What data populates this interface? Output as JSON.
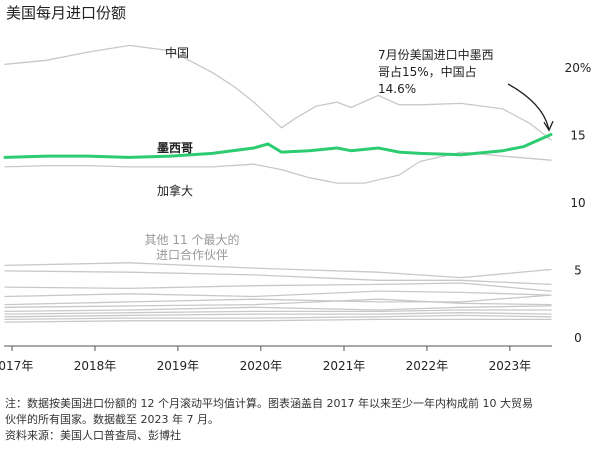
{
  "title": "美国每月进口份额",
  "note_lines": [
    "注：数据按美国进口份额的 12 个月滚动平均值计算。图表涵盖自 2017 年以来至少一年内构成前 10 大贸易",
    "伙伴的所有国家。数据截至 2023 年 7 月。"
  ],
  "source": "资料来源：美国人口普查局、彭博社",
  "colors": {
    "mexico": "#2ecc71",
    "others": "#c8c8c8",
    "axis": "#555555",
    "text": "#222222"
  },
  "chart_data": {
    "type": "line",
    "x_ticks": [
      "2017年",
      "2018年",
      "2019年",
      "2020年",
      "2021年",
      "2022年",
      "2023年"
    ],
    "x_range": [
      "2016-12",
      "2023-07"
    ],
    "ylim": [
      0,
      22
    ],
    "y_ticks": [
      "20%",
      "15",
      "10",
      "5",
      "0"
    ],
    "grid": false,
    "annotation": {
      "lines": [
        "7月份美国进口中墨西",
        "哥占15%，中国占",
        "14.6%"
      ],
      "target": {
        "x": "2023-07",
        "y": 14.8
      }
    },
    "group_label": [
      "其他 11 个最大的",
      "进口合作伙伴"
    ],
    "series": [
      {
        "name": "中国",
        "emphasis": false,
        "x": [
          "2016-12",
          "2017-06",
          "2017-12",
          "2018-06",
          "2018-12",
          "2019-06",
          "2019-09",
          "2019-12",
          "2020-04",
          "2020-06",
          "2020-09",
          "2020-12",
          "2021-02",
          "2021-06",
          "2021-09",
          "2021-12",
          "2022-06",
          "2022-12",
          "2023-04",
          "2023-07"
        ],
        "values": [
          20.2,
          20.5,
          21.1,
          21.6,
          21.2,
          19.6,
          18.6,
          17.4,
          15.5,
          16.2,
          17.1,
          17.4,
          17.0,
          17.9,
          17.2,
          17.2,
          17.3,
          16.9,
          15.8,
          14.6
        ]
      },
      {
        "name": "墨西哥",
        "emphasis": true,
        "x": [
          "2016-12",
          "2017-06",
          "2017-12",
          "2018-06",
          "2018-12",
          "2019-06",
          "2019-12",
          "2020-02",
          "2020-04",
          "2020-08",
          "2020-12",
          "2021-02",
          "2021-06",
          "2021-09",
          "2021-12",
          "2022-06",
          "2022-12",
          "2023-03",
          "2023-07"
        ],
        "values": [
          13.3,
          13.4,
          13.4,
          13.3,
          13.4,
          13.6,
          14.0,
          14.3,
          13.7,
          13.8,
          14.0,
          13.8,
          14.0,
          13.7,
          13.6,
          13.5,
          13.8,
          14.1,
          15.0
        ]
      },
      {
        "name": "加拿大",
        "emphasis": false,
        "x": [
          "2016-12",
          "2017-06",
          "2017-12",
          "2018-06",
          "2018-12",
          "2019-06",
          "2019-12",
          "2020-04",
          "2020-08",
          "2020-12",
          "2021-04",
          "2021-09",
          "2021-12",
          "2022-06",
          "2022-12",
          "2023-07"
        ],
        "values": [
          12.6,
          12.7,
          12.7,
          12.6,
          12.6,
          12.6,
          12.8,
          12.4,
          11.8,
          11.4,
          11.4,
          12.0,
          13.0,
          13.7,
          13.4,
          13.1
        ]
      },
      {
        "name": "",
        "emphasis": false,
        "x": [
          "2016-12",
          "2018-06",
          "2019-12",
          "2020-06",
          "2021-06",
          "2022-06",
          "2023-07"
        ],
        "values": [
          5.3,
          5.5,
          5.1,
          5.0,
          4.8,
          4.4,
          5.0
        ]
      },
      {
        "name": "",
        "emphasis": false,
        "x": [
          "2016-12",
          "2018-06",
          "2019-12",
          "2021-06",
          "2022-06",
          "2023-07"
        ],
        "values": [
          4.9,
          4.8,
          4.6,
          4.2,
          4.2,
          3.9
        ]
      },
      {
        "name": "",
        "emphasis": false,
        "x": [
          "2016-12",
          "2018-06",
          "2019-12",
          "2021-06",
          "2022-06",
          "2023-07"
        ],
        "values": [
          3.7,
          3.6,
          3.8,
          3.9,
          4.0,
          3.4
        ]
      },
      {
        "name": "",
        "emphasis": false,
        "x": [
          "2016-12",
          "2018-06",
          "2019-12",
          "2021-06",
          "2022-06",
          "2023-07"
        ],
        "values": [
          3.0,
          3.2,
          3.0,
          3.4,
          3.3,
          3.1
        ]
      },
      {
        "name": "",
        "emphasis": false,
        "x": [
          "2016-12",
          "2018-06",
          "2019-12",
          "2021-06",
          "2022-06",
          "2023-07"
        ],
        "values": [
          2.4,
          2.6,
          2.8,
          2.6,
          2.6,
          3.1
        ]
      },
      {
        "name": "",
        "emphasis": false,
        "x": [
          "2016-12",
          "2018-06",
          "2019-12",
          "2021-06",
          "2022-06",
          "2023-07"
        ],
        "values": [
          2.2,
          2.3,
          2.4,
          2.8,
          2.5,
          2.4
        ]
      },
      {
        "name": "",
        "emphasis": false,
        "x": [
          "2016-12",
          "2018-06",
          "2019-12",
          "2021-06",
          "2022-06",
          "2023-07"
        ],
        "values": [
          1.9,
          2.0,
          2.2,
          2.0,
          2.2,
          2.3
        ]
      },
      {
        "name": "",
        "emphasis": false,
        "x": [
          "2016-12",
          "2018-06",
          "2019-12",
          "2021-06",
          "2022-06",
          "2023-07"
        ],
        "values": [
          1.7,
          1.8,
          1.9,
          1.9,
          2.0,
          2.0
        ]
      },
      {
        "name": "",
        "emphasis": false,
        "x": [
          "2016-12",
          "2018-06",
          "2019-12",
          "2021-06",
          "2022-06",
          "2023-07"
        ],
        "values": [
          1.5,
          1.6,
          1.7,
          1.7,
          1.8,
          1.7
        ]
      },
      {
        "name": "",
        "emphasis": false,
        "x": [
          "2016-12",
          "2018-06",
          "2019-12",
          "2021-06",
          "2022-06",
          "2023-07"
        ],
        "values": [
          1.3,
          1.4,
          1.4,
          1.5,
          1.6,
          1.5
        ]
      },
      {
        "name": "",
        "emphasis": false,
        "x": [
          "2016-12",
          "2018-06",
          "2019-12",
          "2021-06",
          "2022-06",
          "2023-07"
        ],
        "values": [
          1.1,
          1.2,
          1.2,
          1.3,
          1.3,
          1.3
        ]
      }
    ]
  }
}
